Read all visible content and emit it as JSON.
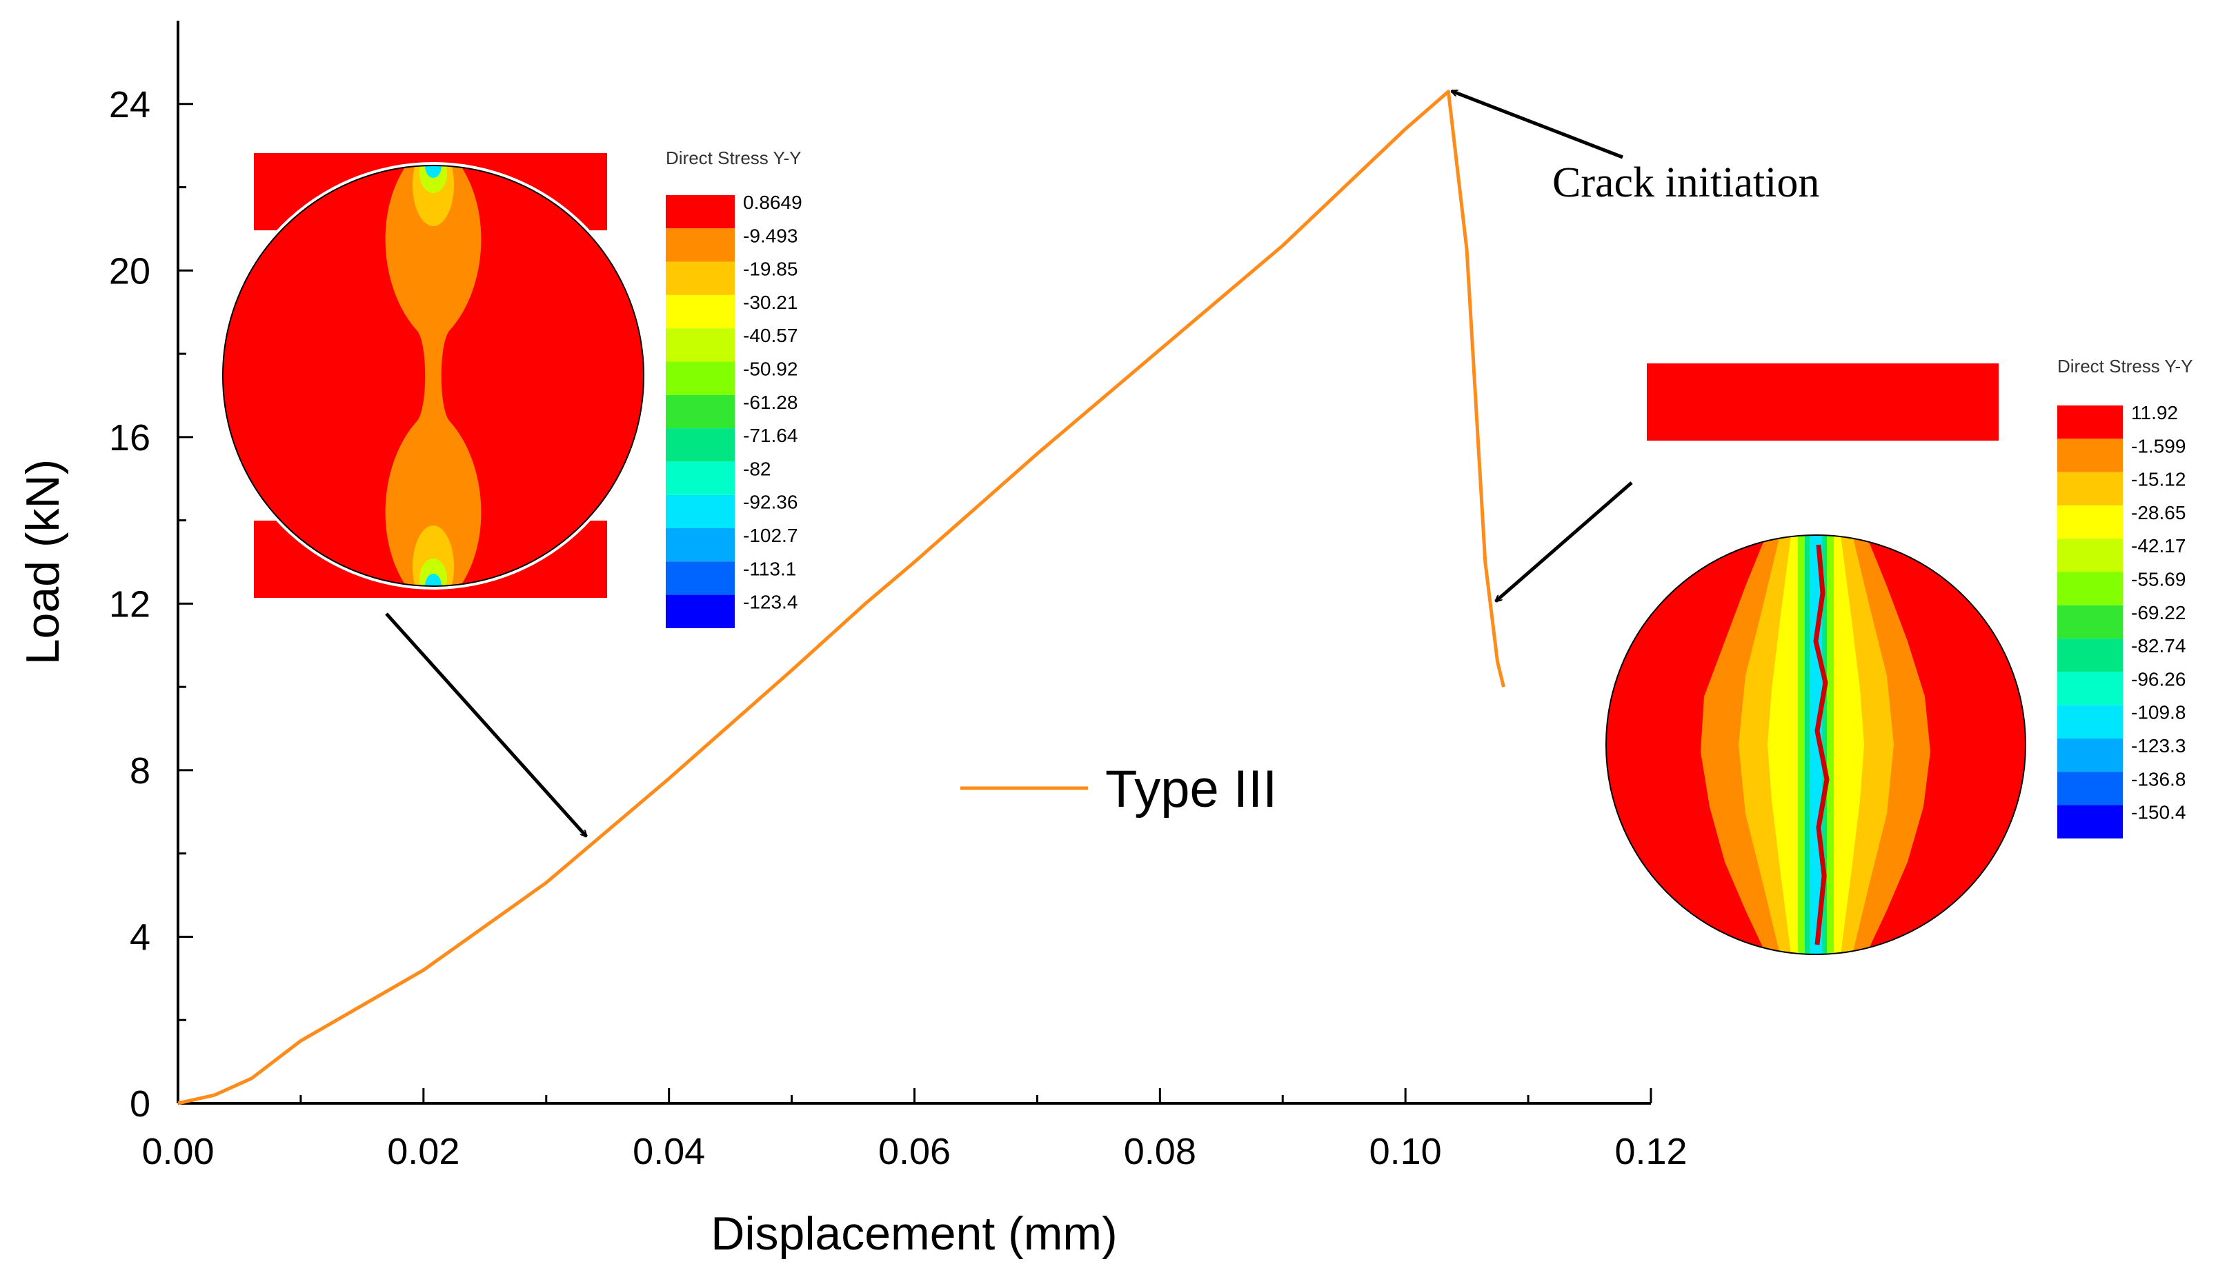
{
  "chart_data": {
    "type": "line",
    "xlabel": "Displacement (mm)",
    "ylabel": "Load (kN)",
    "xlim": [
      0,
      0.12
    ],
    "ylim": [
      0,
      26
    ],
    "x_ticks": [
      "0.00",
      "0.02",
      "0.04",
      "0.06",
      "0.08",
      "0.10",
      "0.12"
    ],
    "y_ticks": [
      "0",
      "4",
      "8",
      "12",
      "16",
      "20",
      "24"
    ],
    "grid": false,
    "legend_position": "center",
    "series": [
      {
        "name": "Type III",
        "color": "#FF8C1A",
        "x": [
          0,
          0.003,
          0.006,
          0.01,
          0.02,
          0.03,
          0.04,
          0.05,
          0.056,
          0.06,
          0.07,
          0.08,
          0.09,
          0.1,
          0.1035,
          0.105,
          0.1065,
          0.107,
          0.1075,
          0.108
        ],
        "y": [
          0,
          0.2,
          0.6,
          1.5,
          3.2,
          5.3,
          7.8,
          10.4,
          12.0,
          13.0,
          15.6,
          18.1,
          20.6,
          23.4,
          24.3,
          20.5,
          13.0,
          11.8,
          10.6,
          10.0
        ]
      }
    ],
    "annotations": [
      {
        "text": "Crack initiation",
        "at_x": 0.1035,
        "at_y": 24.3
      }
    ]
  },
  "insets": [
    {
      "title": "Direct Stress Y-Y",
      "points_to": {
        "x": 0.033,
        "y": 6.1
      },
      "colorbar_labels": [
        "0.8649",
        "-9.493",
        "-19.85",
        "-30.21",
        "-40.57",
        "-50.92",
        "-61.28",
        "-71.64",
        "-82",
        "-92.36",
        "-102.7",
        "-113.1",
        "-123.4"
      ],
      "colorbar_colors": [
        "#FF0000",
        "#FF8C00",
        "#FFC800",
        "#FFFF00",
        "#C8FF00",
        "#82FF00",
        "#32E632",
        "#00E682",
        "#00FFC8",
        "#00E6FF",
        "#00AAFF",
        "#0064FF",
        "#0000FF"
      ]
    },
    {
      "title": "Direct Stress Y-Y",
      "points_to": {
        "x": 0.1068,
        "y": 12.1
      },
      "colorbar_labels": [
        "11.92",
        "-1.599",
        "-15.12",
        "-28.65",
        "-42.17",
        "-55.69",
        "-69.22",
        "-82.74",
        "-96.26",
        "-109.8",
        "-123.3",
        "-136.8",
        "-150.4"
      ],
      "colorbar_colors": [
        "#FF0000",
        "#FF8C00",
        "#FFC800",
        "#FFFF00",
        "#C8FF00",
        "#82FF00",
        "#32E632",
        "#00E682",
        "#00FFC8",
        "#00E6FF",
        "#00AAFF",
        "#0064FF",
        "#0000FF"
      ]
    }
  ]
}
